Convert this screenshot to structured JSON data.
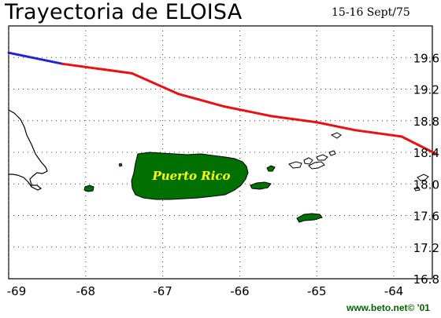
{
  "title": "Trayectoria de ELOISA",
  "date": "15-16 Sept/75",
  "credit": "www.beto.net© '01",
  "map": {
    "label": "Puerto Rico",
    "lon_range": [
      -69,
      -63.5
    ],
    "lat_range": [
      16.8,
      20.0
    ],
    "x_ticks": [
      "-69",
      "-68",
      "-67",
      "-66",
      "-65",
      "-64"
    ],
    "y_ticks": [
      "19.6",
      "19.2",
      "18.8",
      "18.4",
      "18.0",
      "17.6",
      "17.2",
      "16.8"
    ],
    "grid": "dotted",
    "colors": {
      "track_early": "#2020e0",
      "track_late": "#ee1010",
      "land": "#007000",
      "label": "#ffff00"
    }
  },
  "track": [
    {
      "lon": -69.0,
      "lat": 19.66,
      "segment": "blue"
    },
    {
      "lon": -68.3,
      "lat": 19.52,
      "segment": "red"
    },
    {
      "lon": -67.4,
      "lat": 19.4,
      "segment": "red"
    },
    {
      "lon": -66.8,
      "lat": 19.14,
      "segment": "red"
    },
    {
      "lon": -66.2,
      "lat": 18.98,
      "segment": "red"
    },
    {
      "lon": -65.6,
      "lat": 18.86,
      "segment": "red"
    },
    {
      "lon": -65.0,
      "lat": 18.78,
      "segment": "red"
    },
    {
      "lon": -64.5,
      "lat": 18.68,
      "segment": "red"
    },
    {
      "lon": -63.9,
      "lat": 18.6,
      "segment": "red"
    },
    {
      "lon": -63.45,
      "lat": 18.38,
      "segment": "red"
    }
  ]
}
